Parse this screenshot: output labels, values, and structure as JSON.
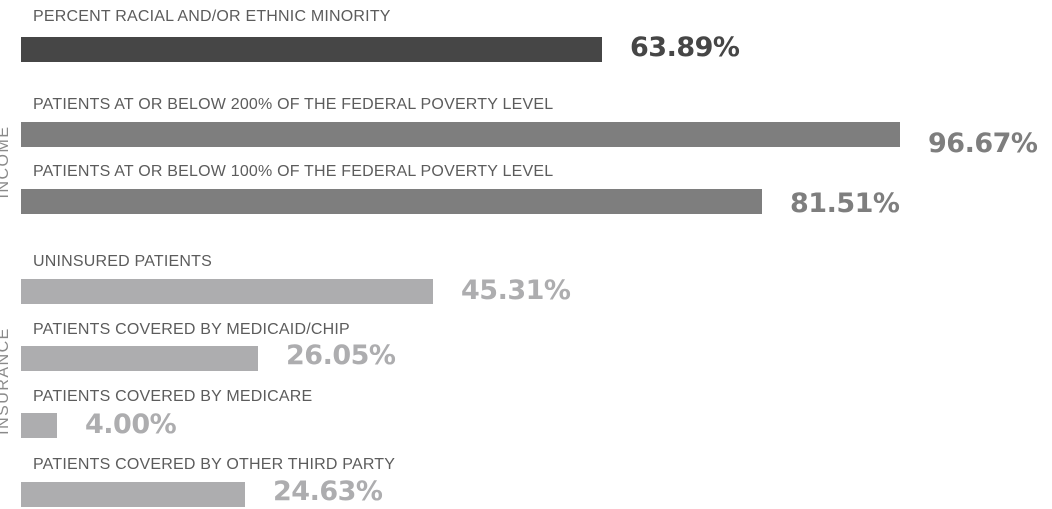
{
  "chart_data": {
    "type": "bar",
    "orientation": "horizontal",
    "xlim": [
      0,
      100
    ],
    "unit": "%",
    "groups": [
      {
        "label": "",
        "categories": [
          "PERCENT RACIAL AND/OR ETHNIC MINORITY"
        ]
      },
      {
        "label": "INCOME",
        "categories": [
          "PATIENTS AT OR BELOW 200% OF THE FEDERAL POVERTY LEVEL",
          "PATIENTS AT OR BELOW 100% OF THE FEDERAL POVERTY LEVEL"
        ]
      },
      {
        "label": "INSURANCE",
        "categories": [
          "UNINSURED PATIENTS",
          "PATIENTS COVERED BY MEDICAID/CHIP",
          "PATIENTS COVERED BY MEDICARE",
          "PATIENTS COVERED BY OTHER THIRD PARTY"
        ]
      }
    ],
    "bars": [
      {
        "label": "PERCENT RACIAL AND/OR ETHNIC MINORITY",
        "value": 63.89,
        "display": "63.89%",
        "color": "#464646",
        "text_color": "#464646"
      },
      {
        "label": "PATIENTS AT OR BELOW 200% OF THE FEDERAL POVERTY LEVEL",
        "value": 96.67,
        "display": "96.67%",
        "color": "#7e7e7e",
        "text_color": "#7e7e7e"
      },
      {
        "label": "PATIENTS AT OR BELOW 100% OF THE FEDERAL POVERTY LEVEL",
        "value": 81.51,
        "display": "81.51%",
        "color": "#7e7e7e",
        "text_color": "#7e7e7e"
      },
      {
        "label": "UNINSURED PATIENTS",
        "value": 45.31,
        "display": "45.31%",
        "color": "#adadaf",
        "text_color": "#adadaf"
      },
      {
        "label": "PATIENTS COVERED BY MEDICAID/CHIP",
        "value": 26.05,
        "display": "26.05%",
        "color": "#adadaf",
        "text_color": "#adadaf"
      },
      {
        "label": "PATIENTS COVERED BY MEDICARE",
        "value": 4.0,
        "display": "4.00%",
        "color": "#adadaf",
        "text_color": "#adadaf"
      },
      {
        "label": "PATIENTS COVERED BY OTHER THIRD PARTY",
        "value": 24.63,
        "display": "24.63%",
        "color": "#adadaf",
        "text_color": "#adadaf"
      }
    ]
  }
}
